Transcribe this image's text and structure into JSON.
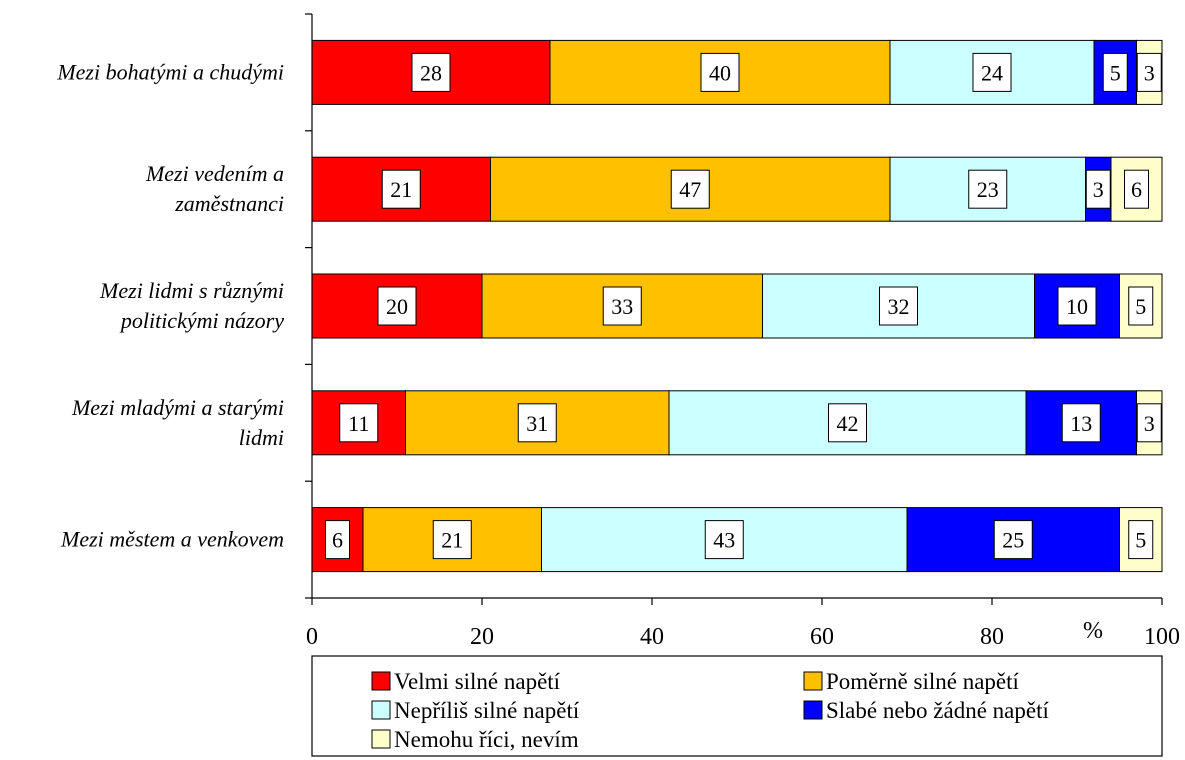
{
  "chart_data": {
    "type": "bar",
    "orientation": "horizontal",
    "stacked": true,
    "categories": [
      [
        "Mezi bohatými a chudými"
      ],
      [
        "Mezi vedením a",
        "zaměstnanci"
      ],
      [
        "Mezi lidmi s různými",
        "politickými názory"
      ],
      [
        "Mezi mladými a starými",
        "lidmi"
      ],
      [
        "Mezi městem a venkovem"
      ]
    ],
    "series": [
      {
        "name": "Velmi silné napětí",
        "color": "#ff0000",
        "values": [
          28,
          21,
          20,
          11,
          6
        ]
      },
      {
        "name": "Poměrně silné napětí",
        "color": "#ffc000",
        "values": [
          40,
          47,
          33,
          31,
          21
        ]
      },
      {
        "name": "Nepříliš silné napětí",
        "color": "#ccffff",
        "values": [
          24,
          23,
          32,
          42,
          43
        ]
      },
      {
        "name": "Slabé nebo žádné napětí",
        "color": "#0000ff",
        "values": [
          5,
          3,
          10,
          13,
          25
        ]
      },
      {
        "name": "Nemohu říci, nevím",
        "color": "#ffffcc",
        "values": [
          3,
          6,
          5,
          3,
          5
        ]
      }
    ],
    "x_ticks": [
      "0",
      "20",
      "40",
      "60",
      "80",
      "100"
    ],
    "xlim": [
      0,
      100
    ],
    "x_unit": "%",
    "legend_position": "bottom",
    "grid": false
  }
}
